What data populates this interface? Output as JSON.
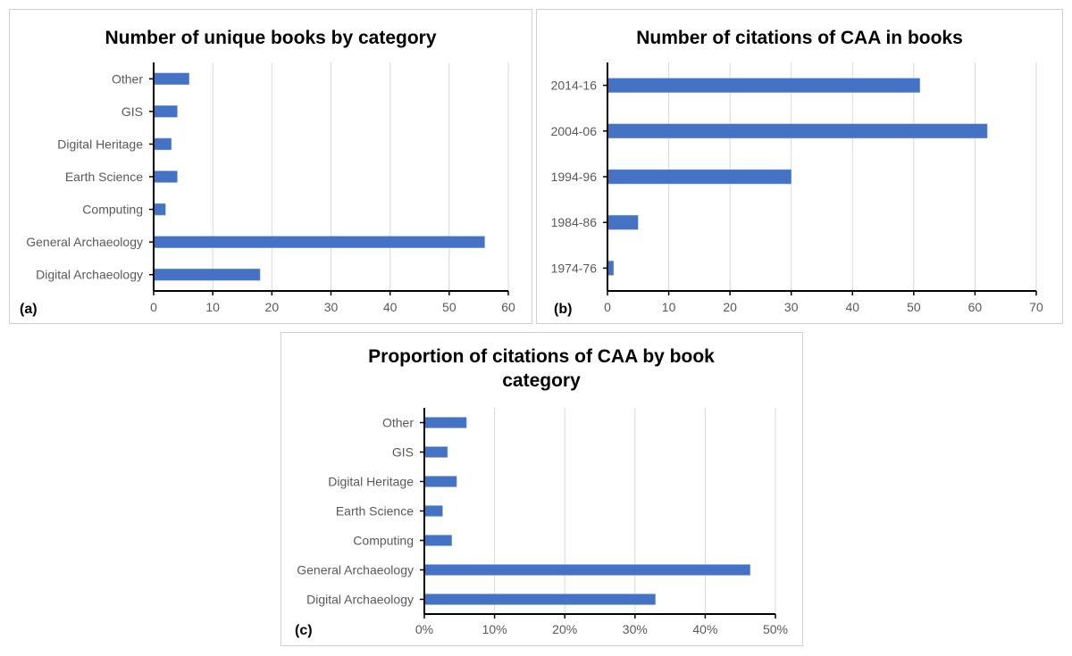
{
  "chart_data": [
    {
      "type": "bar",
      "orientation": "horizontal",
      "panel_label": "(a)",
      "title": "Number of unique books by category",
      "categories": [
        "Other",
        "GIS",
        "Digital Heritage",
        "Earth Science",
        "Computing",
        "General Archaeology",
        "Digital Archaeology"
      ],
      "values": [
        6,
        4,
        3,
        4,
        2,
        56,
        18
      ],
      "xlim": [
        0,
        60
      ],
      "xticks": [
        "0",
        "10",
        "20",
        "30",
        "40",
        "50",
        "60"
      ],
      "xlabel": "",
      "ylabel": "",
      "grid": true,
      "color": "#4472C4"
    },
    {
      "type": "bar",
      "orientation": "horizontal",
      "panel_label": "(b)",
      "title": "Number of citations of CAA in books",
      "categories": [
        "2014-16",
        "2004-06",
        "1994-96",
        "1984-86",
        "1974-76"
      ],
      "values": [
        51,
        62,
        30,
        5,
        1
      ],
      "xlim": [
        0,
        70
      ],
      "xticks": [
        "0",
        "10",
        "20",
        "30",
        "40",
        "50",
        "60",
        "70"
      ],
      "xlabel": "",
      "ylabel": "",
      "grid": true,
      "color": "#4472C4"
    },
    {
      "type": "bar",
      "orientation": "horizontal",
      "panel_label": "(c)",
      "title": "Proportion of citations of CAA by book category",
      "title_lines": [
        "Proportion of citations of CAA by book",
        "category"
      ],
      "categories": [
        "Other",
        "GIS",
        "Digital Heritage",
        "Earth Science",
        "Computing",
        "General Archaeology",
        "Digital Archaeology"
      ],
      "values": [
        0.06,
        0.033,
        0.046,
        0.026,
        0.039,
        0.464,
        0.329
      ],
      "xlim": [
        0,
        0.5
      ],
      "xticks": [
        "0%",
        "10%",
        "20%",
        "30%",
        "40%",
        "50%"
      ],
      "xlabel": "",
      "ylabel": "",
      "grid": true,
      "color": "#4472C4"
    }
  ]
}
